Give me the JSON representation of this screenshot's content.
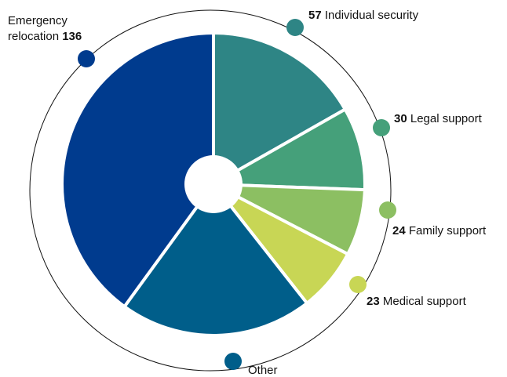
{
  "chart_data": {
    "type": "pie",
    "categories": [
      "Individual security",
      "Legal support",
      "Family support",
      "Medical support",
      "Other",
      "Emergency relocation"
    ],
    "values": [
      57,
      30,
      24,
      23,
      70,
      136
    ],
    "colors": [
      "#2e8585",
      "#45a07a",
      "#8cbf62",
      "#c8d655",
      "#005e8a",
      "#003b8e"
    ]
  }
}
